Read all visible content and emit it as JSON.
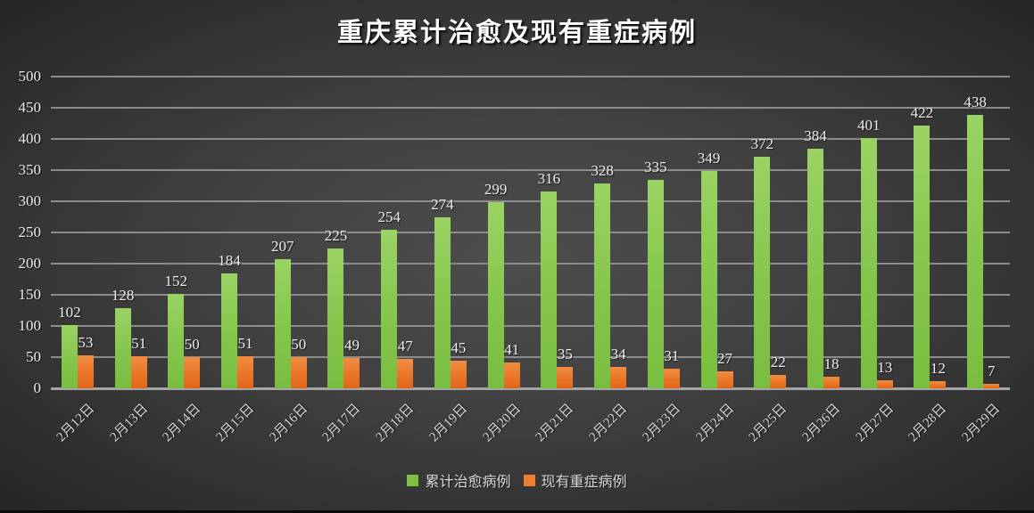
{
  "title": "重庆累计治愈及现有重症病例",
  "legend": {
    "cured_label": "累计治愈病例",
    "severe_label": "现有重症病例"
  },
  "colors": {
    "cured": "#7dc143",
    "severe": "#ed7d31",
    "background_center": "#4d4d4d",
    "background_edge": "#252525",
    "gridline": "#8c8c8c",
    "text": "#ececec"
  },
  "chart_data": {
    "type": "bar",
    "title": "重庆累计治愈及现有重症病例",
    "categories": [
      "2月12日",
      "2月13日",
      "2月14日",
      "2月15日",
      "2月16日",
      "2月17日",
      "2月18日",
      "2月19日",
      "2月20日",
      "2月21日",
      "2月22日",
      "2月23日",
      "2月24日",
      "2月25日",
      "2月26日",
      "2月27日",
      "2月28日",
      "2月29日"
    ],
    "series": [
      {
        "name": "累计治愈病例",
        "color": "#7dc143",
        "values": [
          102,
          128,
          152,
          184,
          207,
          225,
          254,
          274,
          299,
          316,
          328,
          335,
          349,
          372,
          384,
          401,
          422,
          438
        ]
      },
      {
        "name": "现有重症病例",
        "color": "#ed7d31",
        "values": [
          53,
          51,
          50,
          51,
          50,
          49,
          47,
          45,
          41,
          35,
          34,
          31,
          27,
          22,
          18,
          13,
          12,
          7
        ]
      }
    ],
    "xlabel": "",
    "ylabel": "",
    "ylim": [
      0,
      500
    ],
    "ytick_step": 50,
    "grid": true,
    "legend_position": "bottom",
    "data_labels": true
  }
}
